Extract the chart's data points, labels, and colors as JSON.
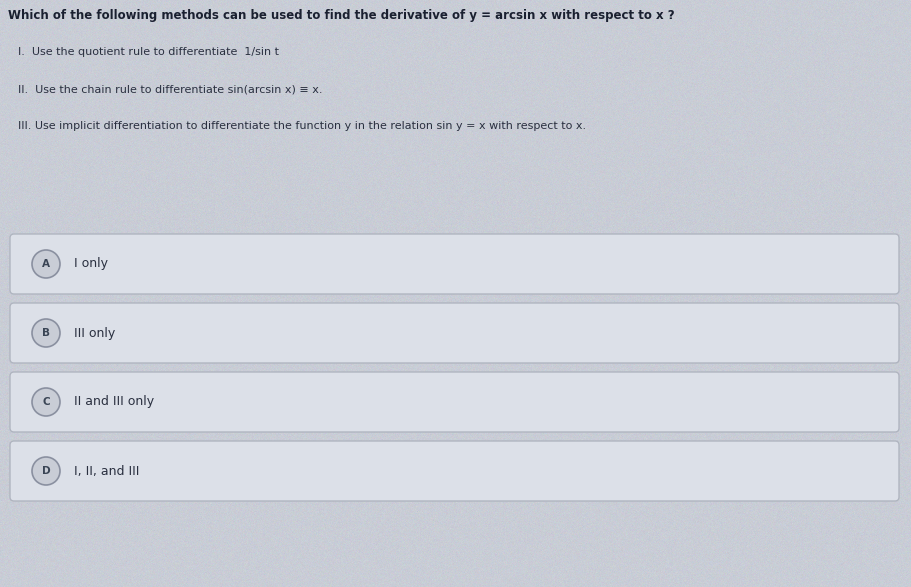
{
  "background_color": "#c9cdd6",
  "question": "Which of the following methods can be used to find the derivative of y = arcsin x with respect to x ?",
  "items": [
    "I.  Use the quotient rule to differentiate  1/sin t",
    "II.  Use the chain rule to differentiate sin(arcsin x) ≡ x.",
    "III. Use implicit differentiation to differentiate the function y in the relation sin y = x with respect to x."
  ],
  "choices": [
    {
      "label": "A",
      "text": "I only"
    },
    {
      "label": "B",
      "text": "III only"
    },
    {
      "label": "C",
      "text": "II and III only"
    },
    {
      "label": "D",
      "text": "I, II, and III"
    }
  ],
  "box_facecolor": "#dce0e8",
  "box_edgecolor": "#b0b5c0",
  "circle_facecolor": "#c9cdd6",
  "circle_edgecolor": "#8a90a0",
  "text_color": "#2a3040",
  "question_color": "#1a2030",
  "item_color": "#2a3040",
  "choice_text_color": "#2a3040",
  "label_color": "#3a4555"
}
